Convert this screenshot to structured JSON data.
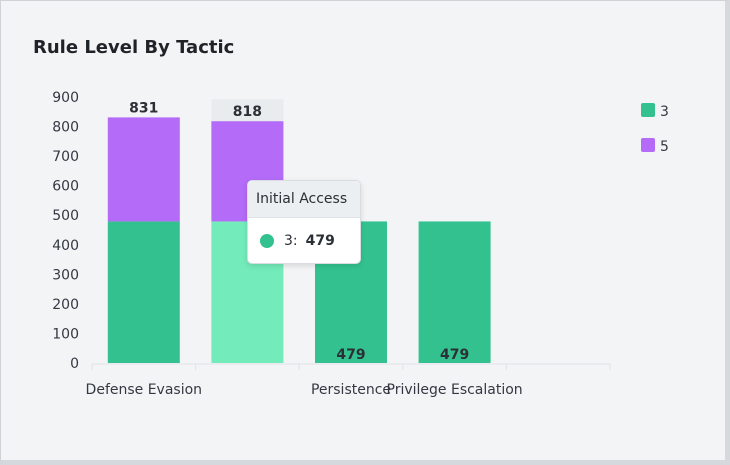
{
  "chart_data": {
    "type": "bar",
    "stacked": true,
    "title": "Rule Level By Tactic",
    "categories": [
      "Defense Evasion",
      "Initial Access",
      "Persistence",
      "Privilege Escalation"
    ],
    "x_tick_labels": [
      "Defense Evasion",
      "",
      "Persistence",
      "Privilege Escalation"
    ],
    "series": [
      {
        "name": "3",
        "color": "#33c28f",
        "values": [
          479,
          479,
          479,
          479
        ]
      },
      {
        "name": "5",
        "color": "#b36bf8",
        "values": [
          352,
          339,
          0,
          0
        ]
      }
    ],
    "totals": [
      831,
      818,
      479,
      479
    ],
    "ylim": [
      0,
      900
    ],
    "yticks": [
      0,
      100,
      200,
      300,
      400,
      500,
      600,
      700,
      800,
      900
    ],
    "xlabel": "",
    "ylabel": "",
    "legend_position": "top-right",
    "highlight_index": 1,
    "highlight_color": "#74ebbb",
    "slot_count": 5
  },
  "tooltip": {
    "title": "Initial Access",
    "series_label": "3:",
    "value": "479",
    "marker_color": "#33c28f"
  }
}
